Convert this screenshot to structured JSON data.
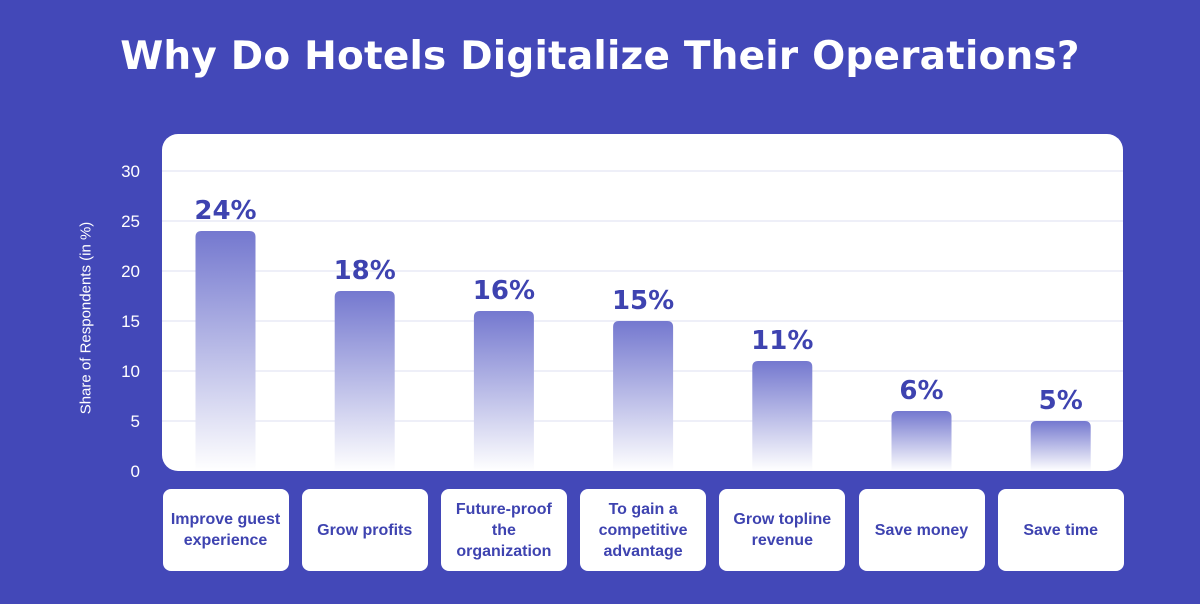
{
  "title": "Why Do Hotels Digitalize Their Operations?",
  "colors": {
    "background": "#4348b8",
    "panel": "#ffffff",
    "bar_top": "#7478cf",
    "bar_bottom": "#ffffff",
    "value_label": "#3e43b0",
    "category_text": "#3e43b0",
    "gridline": "#dcdff0"
  },
  "chart_data": {
    "type": "bar",
    "title": "Why Do Hotels Digitalize Their Operations?",
    "ylabel": "Share of Respondents (in %)",
    "xlabel": "",
    "ylim": [
      0,
      30
    ],
    "yticks": [
      0,
      5,
      10,
      15,
      20,
      25,
      30
    ],
    "grid": true,
    "categories": [
      "Improve guest experience",
      "Grow profits",
      "Future-proof the organization",
      "To gain a competitive advantage",
      "Grow topline revenue",
      "Save money",
      "Save time"
    ],
    "values": [
      24,
      18,
      16,
      15,
      11,
      6,
      5
    ],
    "value_labels": [
      "24%",
      "18%",
      "16%",
      "15%",
      "11%",
      "6%",
      "5%"
    ]
  }
}
